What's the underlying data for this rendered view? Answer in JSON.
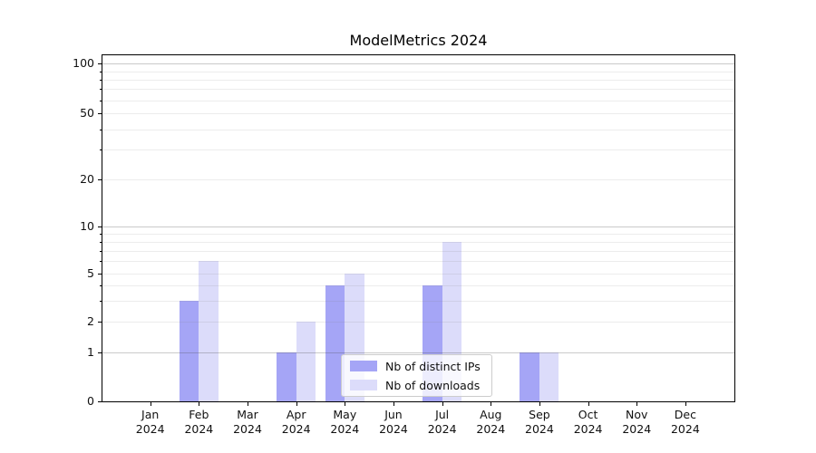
{
  "chart_data": {
    "type": "bar",
    "title": "ModelMetrics 2024",
    "categories": [
      "Jan 2024",
      "Feb 2024",
      "Mar 2024",
      "Apr 2024",
      "May 2024",
      "Jun 2024",
      "Jul 2024",
      "Aug 2024",
      "Sep 2024",
      "Oct 2024",
      "Nov 2024",
      "Dec 2024"
    ],
    "x_tick_line1": [
      "Jan",
      "Feb",
      "Mar",
      "Apr",
      "May",
      "Jun",
      "Jul",
      "Aug",
      "Sep",
      "Oct",
      "Nov",
      "Dec"
    ],
    "x_tick_line2": "2024",
    "series": [
      {
        "name": "Nb of distinct IPs",
        "color": "#a5a5f6",
        "values": [
          0,
          3,
          0,
          1,
          4,
          0,
          4,
          0,
          1,
          0,
          0,
          0
        ]
      },
      {
        "name": "Nb of downloads",
        "color": "#dcdcfa",
        "values": [
          0,
          6,
          0,
          2,
          5,
          0,
          8,
          0,
          1,
          0,
          0,
          0
        ]
      }
    ],
    "yaxis": {
      "scale": "log-like (log above 1, linear 0-1)",
      "tick_values": [
        0,
        1,
        2,
        5,
        10,
        20,
        50,
        100
      ],
      "major_grid_values": [
        1,
        10,
        100
      ],
      "minor_grid_values": [
        3,
        4,
        6,
        7,
        8,
        9,
        30,
        40,
        60,
        70,
        80,
        90
      ],
      "ylim": [
        0,
        110
      ],
      "grid": true
    },
    "legend": {
      "entries": [
        "Nb of distinct IPs",
        "Nb of downloads"
      ],
      "position": "lower-center"
    }
  },
  "colors": {
    "major_grid": "#c9c9c9",
    "minor_grid": "#ececec",
    "spine": "#000000",
    "text": "#111111"
  }
}
